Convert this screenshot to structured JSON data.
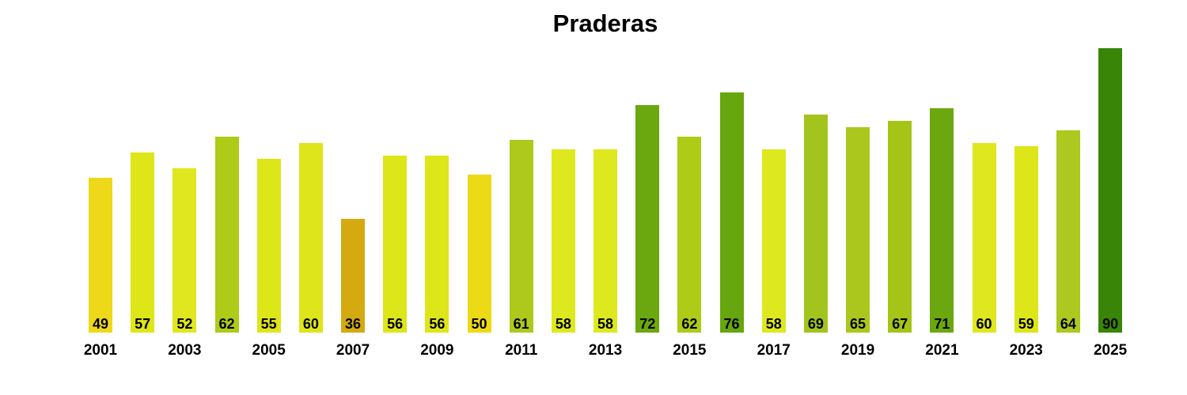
{
  "chart_data": {
    "type": "bar",
    "title": "Praderas",
    "xlabel": "",
    "ylabel": "",
    "x": [
      2001,
      2002,
      2003,
      2004,
      2005,
      2006,
      2007,
      2008,
      2009,
      2010,
      2011,
      2012,
      2013,
      2014,
      2015,
      2016,
      2017,
      2018,
      2019,
      2020,
      2021,
      2022,
      2023,
      2024,
      2025
    ],
    "values": [
      49,
      57,
      52,
      62,
      55,
      60,
      36,
      56,
      56,
      50,
      61,
      58,
      58,
      72,
      62,
      76,
      58,
      69,
      65,
      67,
      71,
      60,
      59,
      64,
      90
    ],
    "bar_colors": [
      "#edd91a",
      "#dde618",
      "#e0e71e",
      "#aecb17",
      "#dde618",
      "#dee51a",
      "#d4aa10",
      "#dde618",
      "#dde618",
      "#ecda17",
      "#aec91c",
      "#dde91e",
      "#dde91e",
      "#6ba80f",
      "#aecb17",
      "#66a60f",
      "#dde91e",
      "#a2c41c",
      "#abc71d",
      "#a5c417",
      "#6ba80f",
      "#dfe81e",
      "#dde618",
      "#adc81e",
      "#388508"
    ],
    "x_tick_labels": [
      "2001",
      "2003",
      "2005",
      "2007",
      "2009",
      "2011",
      "2013",
      "2015",
      "2017",
      "2019",
      "2021",
      "2023",
      "2025"
    ],
    "value_labels_shown": true,
    "ylim": [
      0,
      95
    ],
    "grid": false,
    "legend": "none",
    "background_color": "#ffffff",
    "text_color": "#000000"
  }
}
